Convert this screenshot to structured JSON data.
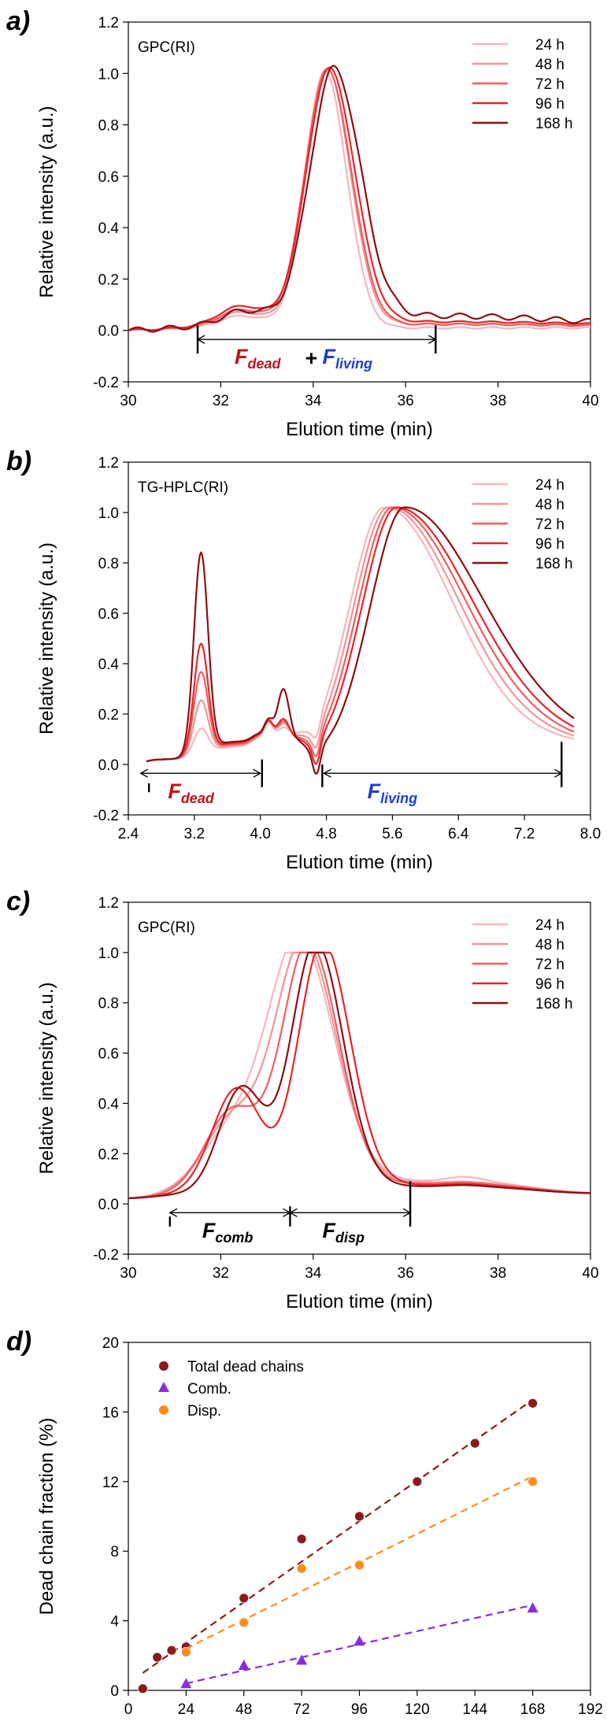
{
  "series_colors": [
    "#f5b8bc",
    "#f29497",
    "#ee5f61",
    "#e5262b",
    "#8b1014"
  ],
  "chart_data": [
    {
      "type": "line",
      "panel_label": "a)",
      "inset_label": "GPC(RI)",
      "xlabel": "Elution time (min)",
      "ylabel": "Relative intensity (a.u.)",
      "xlim": [
        30,
        40
      ],
      "ylim": [
        -0.2,
        1.2
      ],
      "xticks": [
        "30",
        "32",
        "34",
        "36",
        "38",
        "40"
      ],
      "yticks": [
        "-0.2",
        "0.0",
        "0.2",
        "0.4",
        "0.6",
        "0.8",
        "1.0",
        "1.2"
      ],
      "legend_position": "top-right",
      "series": [
        {
          "name": "24 h",
          "peak_x": 34.25,
          "sigma": 0.45,
          "bump_x": 32.4,
          "bump_h": 0.05,
          "base": 0.01,
          "tail": 0.0
        },
        {
          "name": "48 h",
          "peak_x": 34.3,
          "sigma": 0.48,
          "bump_x": 32.4,
          "bump_h": 0.06,
          "base": 0.015,
          "tail": 0.01
        },
        {
          "name": "72 h",
          "peak_x": 34.3,
          "sigma": 0.5,
          "bump_x": 32.4,
          "bump_h": 0.07,
          "base": 0.015,
          "tail": 0.01
        },
        {
          "name": "96 h",
          "peak_x": 34.35,
          "sigma": 0.52,
          "bump_x": 32.4,
          "bump_h": 0.08,
          "base": 0.02,
          "tail": 0.015
        },
        {
          "name": "168 h",
          "peak_x": 34.45,
          "sigma": 0.55,
          "bump_x": 32.5,
          "bump_h": 0.06,
          "base": 0.02,
          "tail": 0.04
        }
      ],
      "markers": [
        31.5,
        36.65
      ],
      "annotation": {
        "left_text": "F",
        "left_sub": "dead",
        "plus": "+",
        "right_text": "F",
        "right_sub": "living",
        "left_color": "#c0141a",
        "right_color": "#1f3fcf"
      }
    },
    {
      "type": "line",
      "panel_label": "b)",
      "inset_label": "TG-HPLC(RI)",
      "xlabel": "Elution time (min)",
      "ylabel": "Relative intensity (a.u.)",
      "xlim": [
        2.4,
        8.0
      ],
      "ylim": [
        -0.2,
        1.2
      ],
      "xticks": [
        "2.4",
        "3.2",
        "4.0",
        "4.8",
        "5.6",
        "6.4",
        "7.2",
        "8.0"
      ],
      "yticks": [
        "-0.2",
        "0.0",
        "0.2",
        "0.4",
        "0.6",
        "0.8",
        "1.0",
        "1.2"
      ],
      "legend_position": "top-right",
      "series": [
        {
          "name": "24 h",
          "peak1_h": 0.1,
          "peak2_h": 0.04,
          "main_x": 5.5
        },
        {
          "name": "48 h",
          "peak1_h": 0.21,
          "peak2_h": 0.06,
          "main_x": 5.55
        },
        {
          "name": "72 h",
          "peak1_h": 0.32,
          "peak2_h": 0.07,
          "main_x": 5.6
        },
        {
          "name": "96 h",
          "peak1_h": 0.43,
          "peak2_h": 0.08,
          "main_x": 5.65
        },
        {
          "name": "168 h",
          "peak1_h": 0.79,
          "peak2_h": 0.2,
          "main_x": 5.75
        }
      ],
      "markers": [
        2.65,
        4.02,
        4.75,
        7.65
      ],
      "annotation": {
        "left_text": "F",
        "left_sub": "dead",
        "right_text": "F",
        "right_sub": "living",
        "left_color": "#c0141a",
        "right_color": "#1f3fcf"
      }
    },
    {
      "type": "line",
      "panel_label": "c)",
      "inset_label": "GPC(RI)",
      "xlabel": "Elution time (min)",
      "ylabel": "Relative intensity (a.u.)",
      "xlim": [
        30,
        40
      ],
      "ylim": [
        -0.2,
        1.2
      ],
      "xticks": [
        "30",
        "32",
        "34",
        "36",
        "38",
        "40"
      ],
      "yticks": [
        "-0.2",
        "0.0",
        "0.2",
        "0.4",
        "0.6",
        "0.8",
        "1.0",
        "1.2"
      ],
      "legend_position": "top-right",
      "series": [
        {
          "name": "24 h",
          "peak_x": 33.7,
          "bump_h": 0.24,
          "sigma": 0.7
        },
        {
          "name": "48 h",
          "peak_x": 33.8,
          "bump_h": 0.29,
          "sigma": 0.65
        },
        {
          "name": "72 h",
          "peak_x": 33.9,
          "bump_h": 0.33,
          "sigma": 0.6
        },
        {
          "name": "96 h",
          "peak_x": 34.2,
          "bump_h": 0.42,
          "sigma": 0.55
        },
        {
          "name": "168 h",
          "peak_x": 34.05,
          "bump_h": 0.42,
          "sigma": 0.55
        }
      ],
      "markers": [
        30.9,
        33.5,
        36.1
      ],
      "annotation": {
        "left_text": "F",
        "left_sub": "comb",
        "right_text": "F",
        "right_sub": "disp",
        "color": "#000000"
      }
    },
    {
      "type": "scatter",
      "panel_label": "d)",
      "xlabel": "Time (h)",
      "ylabel": "Dead chain fraction (%)",
      "xlim": [
        0,
        192
      ],
      "ylim": [
        0,
        20
      ],
      "xticks": [
        "0",
        "24",
        "48",
        "72",
        "96",
        "120",
        "144",
        "168",
        "192"
      ],
      "yticks": [
        "0",
        "4",
        "8",
        "12",
        "16",
        "20"
      ],
      "legend_position": "top-left",
      "series": [
        {
          "name": "Total dead chains",
          "marker": "circle",
          "color": "#8b1a1a",
          "x": [
            6,
            12,
            18,
            24,
            48,
            72,
            96,
            120,
            144,
            168
          ],
          "y": [
            0.1,
            1.9,
            2.3,
            2.5,
            5.3,
            8.7,
            10.0,
            12.0,
            14.2,
            16.5
          ],
          "fit": [
            [
              6,
              1.0
            ],
            [
              168,
              16.7
            ]
          ]
        },
        {
          "name": "Comb.",
          "marker": "triangle",
          "color": "#8a2be2",
          "x": [
            24,
            48,
            72,
            96,
            168
          ],
          "y": [
            0.35,
            1.4,
            1.7,
            2.8,
            4.7
          ],
          "fit": [
            [
              24,
              0.4
            ],
            [
              168,
              4.9
            ]
          ]
        },
        {
          "name": "Disp.",
          "marker": "circle",
          "color": "#ff8c1a",
          "x": [
            24,
            48,
            72,
            96,
            168
          ],
          "y": [
            2.2,
            3.9,
            7.0,
            7.2,
            12.0
          ],
          "fit": [
            [
              24,
              2.4
            ],
            [
              168,
              12.3
            ]
          ]
        }
      ]
    }
  ]
}
